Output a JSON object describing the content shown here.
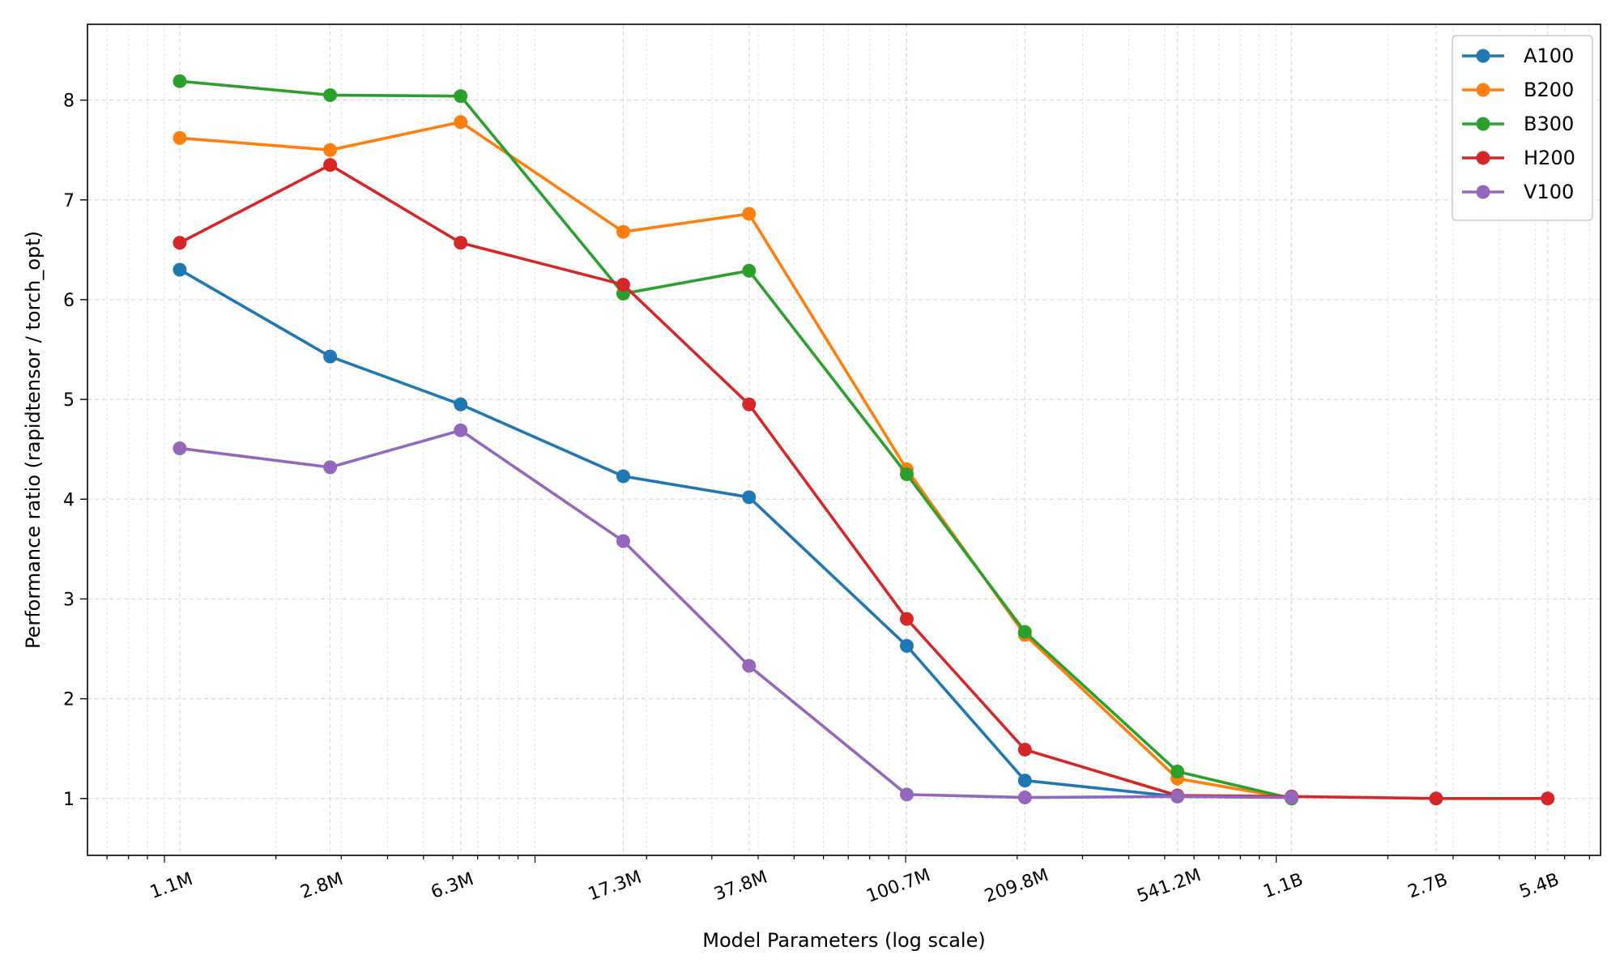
{
  "chart_data": {
    "type": "line",
    "title": "",
    "xlabel": "Model Parameters (log scale)",
    "ylabel": "Performance ratio (rapidtensor / torch_opt)",
    "x_scale": "log",
    "x_values": [
      1100000.0,
      2800000.0,
      6300000.0,
      17300000.0,
      37800000.0,
      100700000.0,
      209800000.0,
      541200000.0,
      1100000000.0,
      2700000000.0,
      5400000000.0
    ],
    "x_tick_labels": [
      "1.1M",
      "2.8M",
      "6.3M",
      "17.3M",
      "37.8M",
      "100.7M",
      "209.8M",
      "541.2M",
      "1.1B",
      "2.7B",
      "5.4B"
    ],
    "xlim": [
      620000.0,
      7500000000.0
    ],
    "ylim": [
      0.43,
      8.76
    ],
    "y_ticks": [
      1,
      2,
      3,
      4,
      5,
      6,
      7,
      8
    ],
    "grid": true,
    "legend_position": "top-right",
    "series": [
      {
        "name": "A100",
        "color": "#1f77b4",
        "values": [
          6.3,
          5.43,
          4.95,
          4.23,
          4.02,
          2.53,
          1.18,
          1.02,
          1.01,
          null,
          null
        ]
      },
      {
        "name": "B200",
        "color": "#ff7f0e",
        "values": [
          7.62,
          7.5,
          7.78,
          6.68,
          6.86,
          4.3,
          2.64,
          1.2,
          1.0,
          null,
          null
        ]
      },
      {
        "name": "B300",
        "color": "#2ca02c",
        "values": [
          8.19,
          8.05,
          8.04,
          6.06,
          6.29,
          4.25,
          2.67,
          1.27,
          1.0,
          null,
          null
        ]
      },
      {
        "name": "H200",
        "color": "#d62728",
        "values": [
          6.57,
          7.35,
          6.57,
          6.15,
          4.95,
          2.8,
          1.49,
          1.03,
          1.02,
          1.0,
          1.0
        ]
      },
      {
        "name": "V100",
        "color": "#9467bd",
        "values": [
          4.51,
          4.32,
          4.69,
          3.58,
          2.33,
          1.04,
          1.01,
          1.02,
          1.01,
          null,
          null
        ]
      }
    ]
  }
}
